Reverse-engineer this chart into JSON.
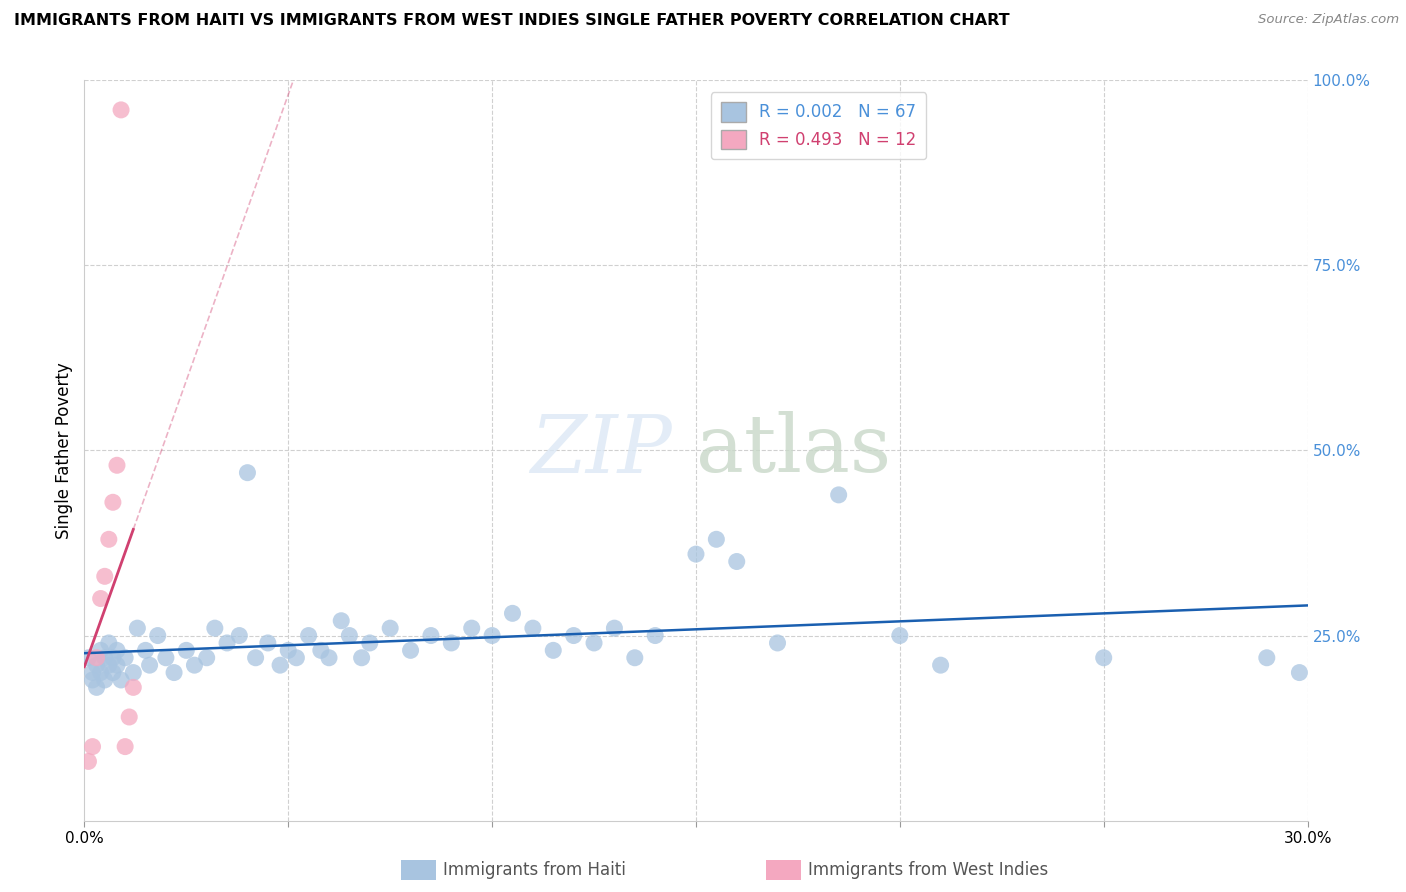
{
  "title": "IMMIGRANTS FROM HAITI VS IMMIGRANTS FROM WEST INDIES SINGLE FATHER POVERTY CORRELATION CHART",
  "source": "Source: ZipAtlas.com",
  "ylabel": "Single Father Poverty",
  "xlabel_haiti": "Immigrants from Haiti",
  "xlabel_wi": "Immigrants from West Indies",
  "xlim": [
    0,
    0.3
  ],
  "ylim": [
    0,
    1.0
  ],
  "haiti_color": "#a8c4e0",
  "wi_color": "#f4a8c0",
  "haiti_line_color": "#1a5fb0",
  "wi_line_color": "#d04070",
  "haiti_R": 0.002,
  "haiti_N": 67,
  "wi_R": 0.493,
  "wi_N": 12,
  "watermark_zip": "ZIP",
  "watermark_atlas": "atlas",
  "haiti_x": [
    0.001,
    0.002,
    0.002,
    0.003,
    0.003,
    0.004,
    0.004,
    0.005,
    0.005,
    0.006,
    0.006,
    0.007,
    0.007,
    0.008,
    0.008,
    0.009,
    0.01,
    0.012,
    0.013,
    0.015,
    0.016,
    0.018,
    0.02,
    0.022,
    0.025,
    0.027,
    0.03,
    0.032,
    0.035,
    0.038,
    0.04,
    0.042,
    0.045,
    0.048,
    0.05,
    0.052,
    0.055,
    0.058,
    0.06,
    0.063,
    0.065,
    0.068,
    0.07,
    0.075,
    0.08,
    0.085,
    0.09,
    0.095,
    0.1,
    0.105,
    0.11,
    0.115,
    0.12,
    0.125,
    0.13,
    0.135,
    0.14,
    0.15,
    0.155,
    0.16,
    0.17,
    0.185,
    0.2,
    0.21,
    0.25,
    0.29,
    0.298
  ],
  "haiti_y": [
    0.22,
    0.2,
    0.19,
    0.21,
    0.18,
    0.23,
    0.2,
    0.22,
    0.19,
    0.24,
    0.21,
    0.2,
    0.22,
    0.23,
    0.21,
    0.19,
    0.22,
    0.2,
    0.26,
    0.23,
    0.21,
    0.25,
    0.22,
    0.2,
    0.23,
    0.21,
    0.22,
    0.26,
    0.24,
    0.25,
    0.47,
    0.22,
    0.24,
    0.21,
    0.23,
    0.22,
    0.25,
    0.23,
    0.22,
    0.27,
    0.25,
    0.22,
    0.24,
    0.26,
    0.23,
    0.25,
    0.24,
    0.26,
    0.25,
    0.28,
    0.26,
    0.23,
    0.25,
    0.24,
    0.26,
    0.22,
    0.25,
    0.36,
    0.38,
    0.35,
    0.24,
    0.44,
    0.25,
    0.21,
    0.22,
    0.22,
    0.2
  ],
  "wi_x": [
    0.001,
    0.002,
    0.003,
    0.004,
    0.005,
    0.006,
    0.007,
    0.008,
    0.009,
    0.01,
    0.011,
    0.012
  ],
  "wi_y": [
    0.08,
    0.1,
    0.22,
    0.3,
    0.33,
    0.38,
    0.43,
    0.48,
    0.96,
    0.1,
    0.14,
    0.18
  ]
}
